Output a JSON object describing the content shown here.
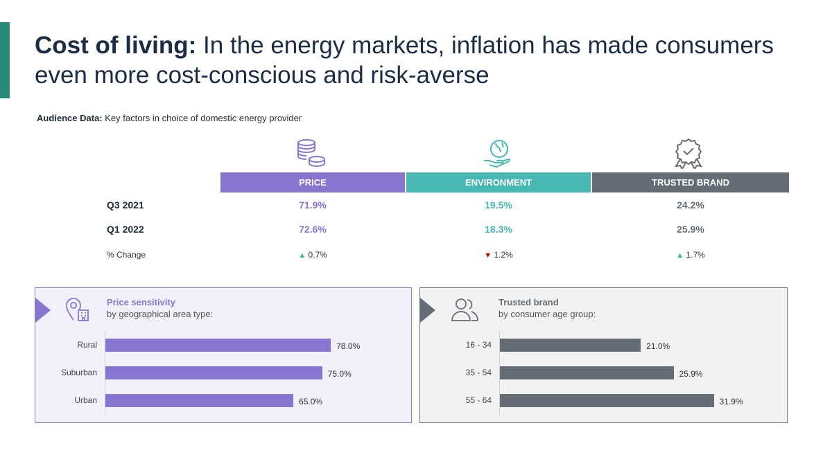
{
  "header": {
    "title_bold": "Cost of living:",
    "title_rest": " In the energy markets, inflation has made consumers even more cost-conscious and risk-averse",
    "subtitle_bold": "Audience Data:",
    "subtitle_rest": " Key factors in choice of domestic energy provider"
  },
  "colors": {
    "price": "#8775d0",
    "environment": "#47b8b3",
    "brand": "#646c75",
    "accent": "#2a8a78"
  },
  "table": {
    "columns": [
      {
        "label": "PRICE",
        "icon": "coins-icon"
      },
      {
        "label": "ENVIRONMENT",
        "icon": "globe-hand-icon"
      },
      {
        "label": "TRUSTED BRAND",
        "icon": "award-badge-icon"
      }
    ],
    "rows": [
      {
        "label": "Q3 2021",
        "values": [
          "71.9%",
          "19.5%",
          "24.2%"
        ]
      },
      {
        "label": "Q1 2022",
        "values": [
          "72.6%",
          "18.3%",
          "25.9%"
        ]
      }
    ],
    "change_label": "% Change",
    "changes": [
      {
        "dir": "up",
        "value": "0.7%"
      },
      {
        "dir": "down",
        "value": "1.2%"
      },
      {
        "dir": "up",
        "value": "1.7%"
      }
    ]
  },
  "panels": {
    "left": {
      "title": "Price sensitivity",
      "subtitle": "by geographical area type:",
      "icon": "location-building-icon"
    },
    "right": {
      "title": "Trusted brand",
      "subtitle": "by consumer age group:",
      "icon": "people-icon"
    }
  },
  "chart_data": [
    {
      "type": "bar",
      "orientation": "horizontal",
      "title": "Price sensitivity",
      "subtitle": "by geographical area type:",
      "categories": [
        "Rural",
        "Suburban",
        "Urban"
      ],
      "values": [
        78.0,
        75.0,
        65.0
      ],
      "value_labels": [
        "78.0%",
        "75.0%",
        "65.0%"
      ],
      "xlim": [
        0,
        100
      ],
      "color": "#8775d0"
    },
    {
      "type": "bar",
      "orientation": "horizontal",
      "title": "Trusted brand",
      "subtitle": "by consumer age group:",
      "categories": [
        "16 - 34",
        "35 - 54",
        "55 - 64"
      ],
      "values": [
        21.0,
        25.9,
        31.9
      ],
      "value_labels": [
        "21.0%",
        "25.9%",
        "31.9%"
      ],
      "xlim": [
        0,
        40
      ],
      "color": "#646c75"
    }
  ]
}
